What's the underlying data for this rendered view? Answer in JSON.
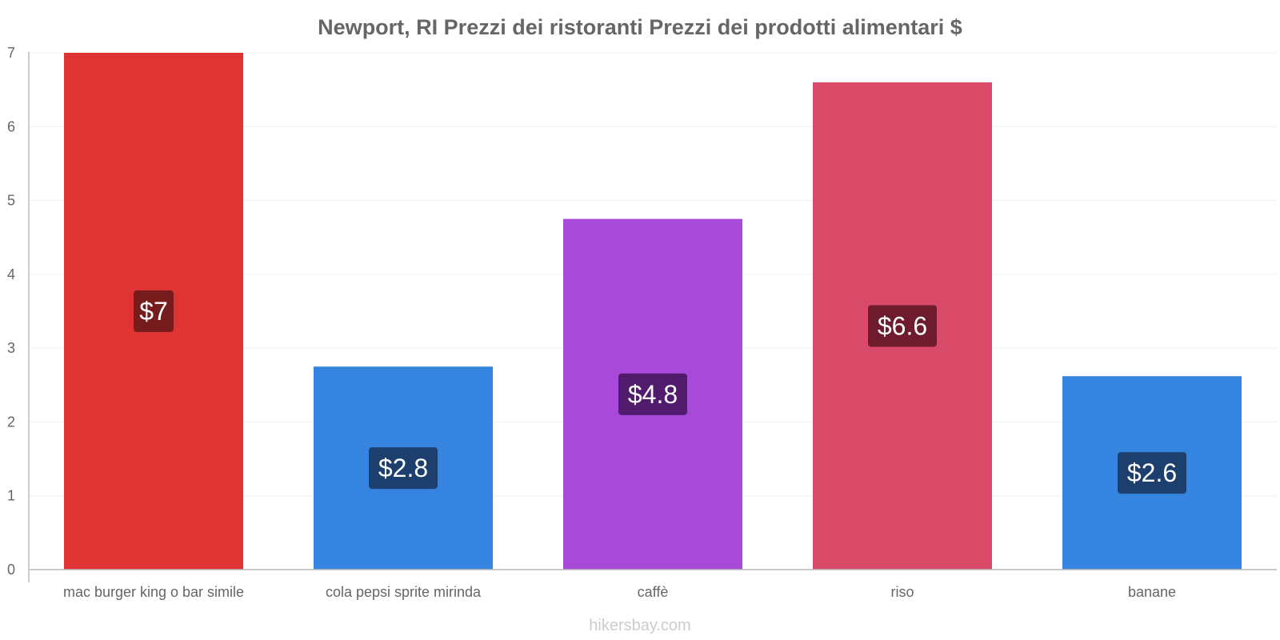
{
  "chart_data": {
    "type": "bar",
    "title": "Newport, RI Prezzi dei ristoranti Prezzi dei prodotti alimentari $",
    "categories": [
      "mac burger king o bar simile",
      "cola pepsi sprite mirinda",
      "caffè",
      "riso",
      "banane"
    ],
    "values": [
      7,
      2.75,
      4.75,
      6.6,
      2.62
    ],
    "value_labels": [
      "$7",
      "$2.8",
      "$4.8",
      "$6.6",
      "$2.6"
    ],
    "bar_colors": [
      "#e03434",
      "#3584df",
      "#a749d9",
      "#d84a67",
      "#3584df"
    ],
    "label_bg_colors": [
      "#761c1c",
      "#1c3f6e",
      "#521c6e",
      "#6e1c2d",
      "#1c3f6e"
    ],
    "y_ticks": [
      0,
      1,
      2,
      3,
      4,
      5,
      6,
      7
    ],
    "ylim": [
      0,
      7
    ],
    "xlabel": "",
    "ylabel": "",
    "grid": true,
    "watermark": "hikersbay.com"
  }
}
